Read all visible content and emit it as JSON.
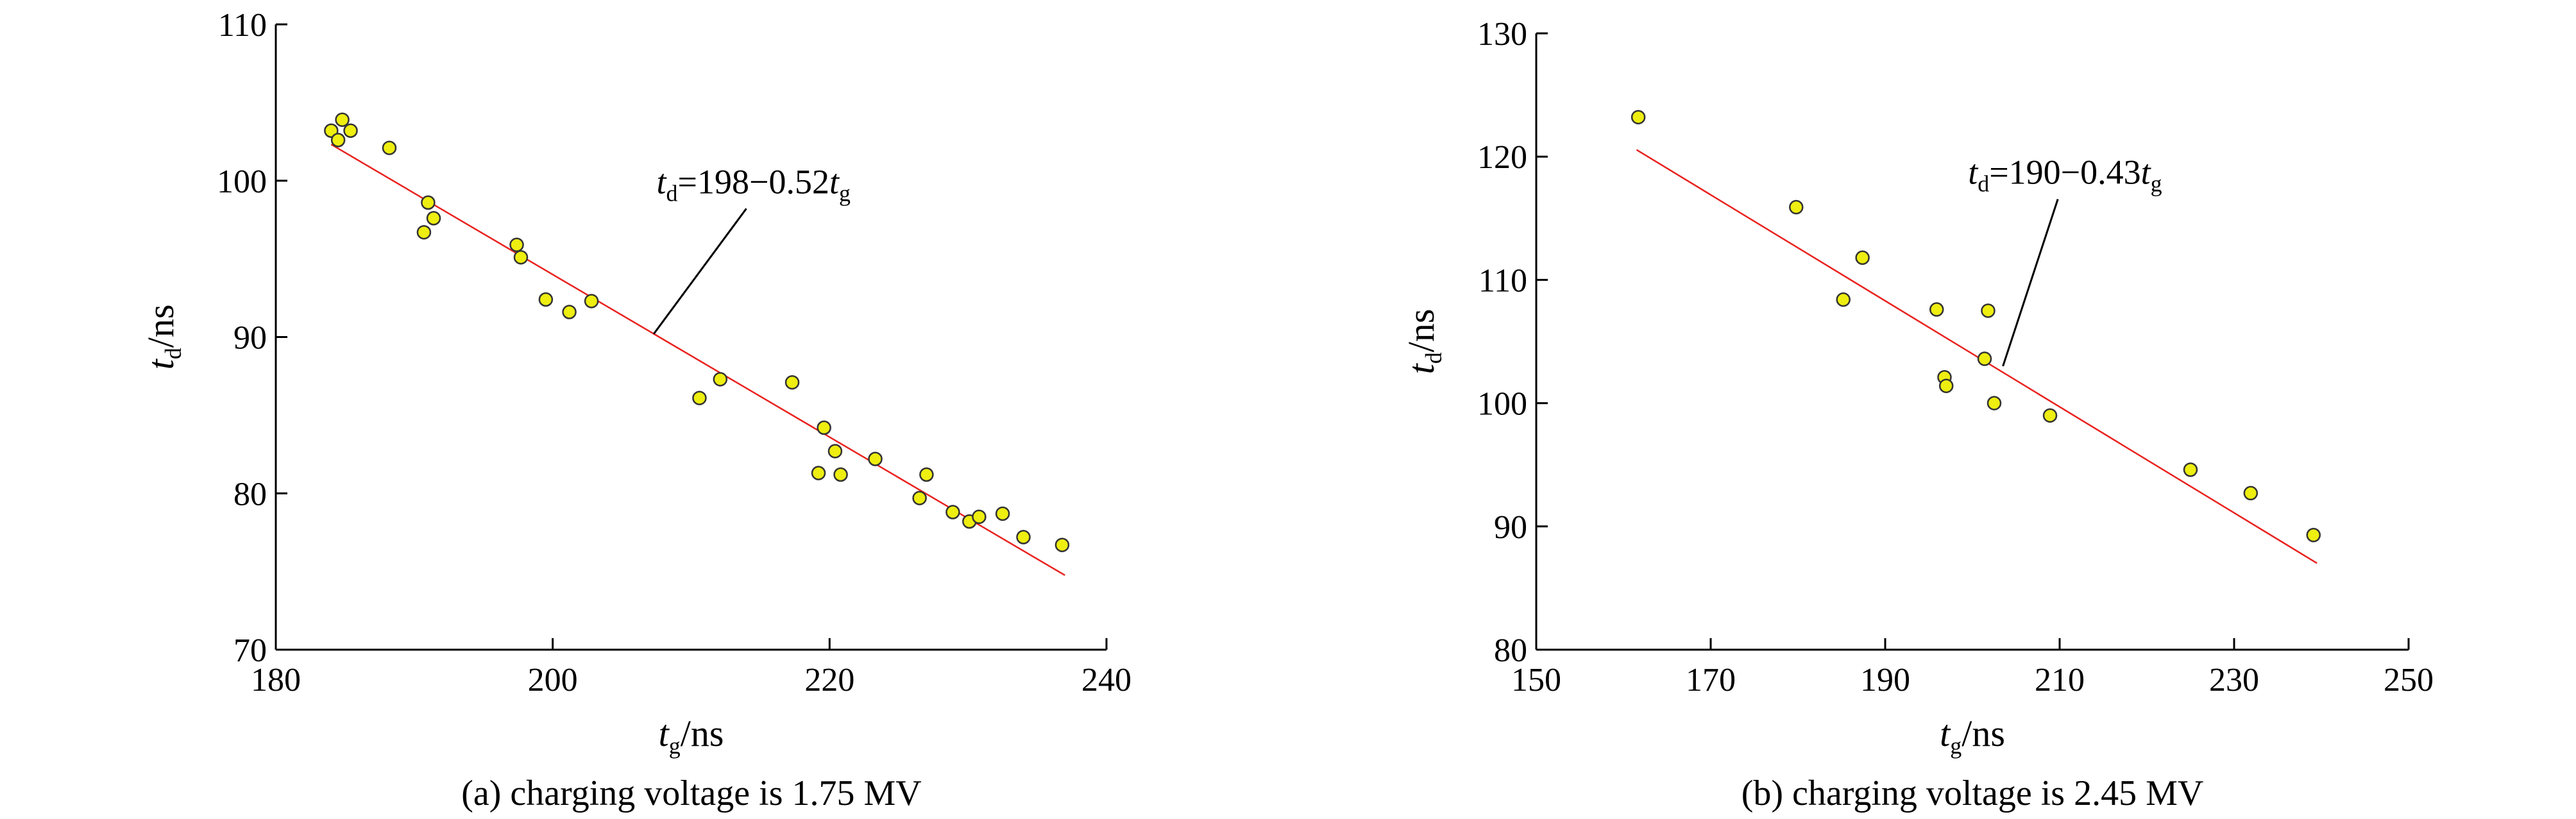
{
  "chart_data": [
    {
      "type": "scatter",
      "caption": "(a) charging voltage is 1.75 MV",
      "xlabel": {
        "var": "t",
        "sub": "g",
        "unit": "/ns"
      },
      "ylabel": {
        "var": "t",
        "sub": "d",
        "unit": "/ns"
      },
      "xlim": [
        180,
        240
      ],
      "ylim": [
        70,
        110
      ],
      "xticks": [
        180,
        200,
        220,
        240
      ],
      "yticks": [
        70,
        80,
        90,
        100,
        110
      ],
      "fit_annotation": {
        "t1": "t",
        "s1": "d",
        "eq": "=198−0.52",
        "t2": "t",
        "s2": "g",
        "text_at": [
          207.5,
          99.2
        ],
        "pointer_at": [
          207.3,
          90.2
        ]
      },
      "fit_line": {
        "intercept": 198,
        "slope": -0.52,
        "x_range": [
          184,
          237
        ]
      },
      "points": [
        {
          "x": 184.0,
          "y": 103.2
        },
        {
          "x": 184.5,
          "y": 102.6
        },
        {
          "x": 184.8,
          "y": 103.9
        },
        {
          "x": 185.4,
          "y": 103.2
        },
        {
          "x": 188.2,
          "y": 102.1
        },
        {
          "x": 190.7,
          "y": 96.7
        },
        {
          "x": 191.0,
          "y": 98.6
        },
        {
          "x": 191.4,
          "y": 97.6
        },
        {
          "x": 197.4,
          "y": 95.9
        },
        {
          "x": 197.7,
          "y": 95.1
        },
        {
          "x": 199.5,
          "y": 92.4
        },
        {
          "x": 201.2,
          "y": 91.6
        },
        {
          "x": 202.8,
          "y": 92.3
        },
        {
          "x": 210.6,
          "y": 86.1
        },
        {
          "x": 212.1,
          "y": 87.3
        },
        {
          "x": 217.3,
          "y": 87.1
        },
        {
          "x": 219.2,
          "y": 81.3
        },
        {
          "x": 219.6,
          "y": 84.2
        },
        {
          "x": 220.4,
          "y": 82.7
        },
        {
          "x": 220.8,
          "y": 81.2
        },
        {
          "x": 223.3,
          "y": 82.2
        },
        {
          "x": 226.5,
          "y": 79.7
        },
        {
          "x": 227.0,
          "y": 81.2
        },
        {
          "x": 228.9,
          "y": 78.8
        },
        {
          "x": 230.1,
          "y": 78.2
        },
        {
          "x": 230.8,
          "y": 78.5
        },
        {
          "x": 232.5,
          "y": 78.7
        },
        {
          "x": 234.0,
          "y": 77.2
        },
        {
          "x": 236.8,
          "y": 76.7
        }
      ]
    },
    {
      "type": "scatter",
      "caption": "(b) charging voltage is 2.45 MV",
      "xlabel": {
        "var": "t",
        "sub": "g",
        "unit": "/ns"
      },
      "ylabel": {
        "var": "t",
        "sub": "d",
        "unit": "/ns"
      },
      "xlim": [
        150,
        250
      ],
      "ylim": [
        80,
        130
      ],
      "xticks": [
        150,
        170,
        190,
        210,
        230,
        250
      ],
      "yticks": [
        80,
        90,
        100,
        110,
        120,
        130
      ],
      "fit_annotation": {
        "t1": "t",
        "s1": "d",
        "eq": "=190−0.43",
        "t2": "t",
        "s2": "g",
        "text_at": [
          199.5,
          117.8
        ],
        "pointer_at": [
          203.5,
          103.0
        ]
      },
      "fit_line": {
        "intercept": 190,
        "slope": -0.43,
        "x_range": [
          161.5,
          239.5
        ]
      },
      "points": [
        {
          "x": 161.7,
          "y": 123.2
        },
        {
          "x": 179.8,
          "y": 115.9
        },
        {
          "x": 185.2,
          "y": 108.4
        },
        {
          "x": 187.4,
          "y": 111.8
        },
        {
          "x": 195.9,
          "y": 107.6
        },
        {
          "x": 196.8,
          "y": 102.1
        },
        {
          "x": 197.0,
          "y": 101.4
        },
        {
          "x": 201.4,
          "y": 103.6
        },
        {
          "x": 201.8,
          "y": 107.5
        },
        {
          "x": 202.5,
          "y": 100.0
        },
        {
          "x": 208.9,
          "y": 99.0
        },
        {
          "x": 225.0,
          "y": 94.6
        },
        {
          "x": 231.9,
          "y": 92.7
        },
        {
          "x": 239.1,
          "y": 89.3
        }
      ]
    }
  ],
  "colors": {
    "axis": "#000000",
    "fit_line": "#e8221f",
    "marker_fill": "#eeee11",
    "marker_edge": "#333333"
  }
}
